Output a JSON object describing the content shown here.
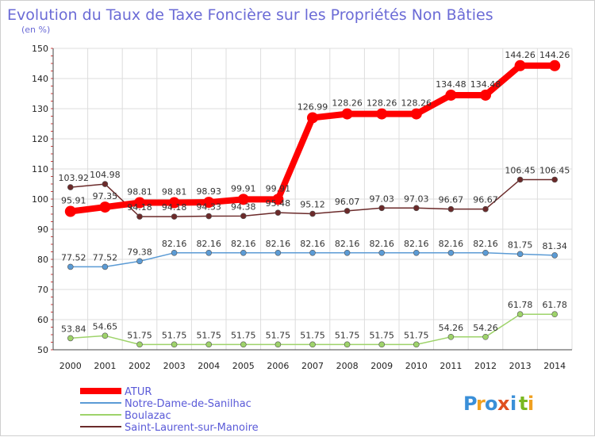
{
  "chart_data": {
    "type": "line",
    "title": "Evolution du Taux de Taxe Foncière sur les Propriétés Non Bâties",
    "ylabel": "(en %)",
    "xlabel": "",
    "ylim": [
      50,
      150
    ],
    "yticks": [
      50,
      60,
      70,
      80,
      90,
      100,
      110,
      120,
      130,
      140,
      150
    ],
    "grid": true,
    "legend_position": "bottom-left",
    "categories": [
      "2000",
      "2001",
      "2002",
      "2003",
      "2004",
      "2005",
      "2006",
      "2007",
      "2008",
      "2009",
      "2010",
      "2011",
      "2012",
      "2013",
      "2014"
    ],
    "series": [
      {
        "name": "Saint-Laurent-sur-Manoire",
        "color": "#6b2a2a",
        "values": [
          103.92,
          104.98,
          94.18,
          94.18,
          94.33,
          94.38,
          95.48,
          95.12,
          96.07,
          97.03,
          97.03,
          96.67,
          96.67,
          106.45,
          106.45
        ],
        "labels": [
          "103.92",
          "104.98",
          "94.18",
          "94.18",
          "94.33",
          "94.38",
          "95.48",
          "95.12",
          "96.07",
          "97.03",
          "97.03",
          "96.67",
          "96.67",
          "106.45",
          "106.45"
        ]
      },
      {
        "name": "Notre-Dame-de-Sanilhac",
        "color": "#5b9bd5",
        "values": [
          77.52,
          77.52,
          79.38,
          82.16,
          82.16,
          82.16,
          82.16,
          82.16,
          82.16,
          82.16,
          82.16,
          82.16,
          82.16,
          81.75,
          81.34
        ],
        "labels": [
          "77.52",
          "77.52",
          "79.38",
          "82.16",
          "82.16",
          "82.16",
          "82.16",
          "82.16",
          "82.16",
          "82.16",
          "82.16",
          "82.16",
          "82.16",
          "81.75",
          "81.34"
        ]
      },
      {
        "name": "Boulazac",
        "color": "#9ed36a",
        "values": [
          53.84,
          54.65,
          51.75,
          51.75,
          51.75,
          51.75,
          51.75,
          51.75,
          51.75,
          51.75,
          51.75,
          54.26,
          54.26,
          61.78,
          61.78
        ],
        "labels": [
          "53.84",
          "54.65",
          "51.75",
          "51.75",
          "51.75",
          "51.75",
          "51.75",
          "51.75",
          "51.75",
          "51.75",
          "51.75",
          "54.26",
          "54.26",
          "61.78",
          "61.78"
        ]
      },
      {
        "name": "ATUR",
        "color": "#ff0000",
        "values": [
          95.91,
          97.35,
          98.81,
          98.81,
          98.93,
          99.91,
          99.91,
          126.99,
          128.26,
          128.26,
          128.26,
          134.48,
          134.48,
          144.26,
          144.26
        ],
        "labels": [
          "95.91",
          "97.35",
          "98.81",
          "98.81",
          "98.93",
          "99.91",
          "99.91",
          "126.99",
          "128.26",
          "128.26",
          "128.26",
          "134.48",
          "134.48",
          "144.26",
          "144.26"
        ]
      }
    ],
    "legend": [
      "ATUR",
      "Notre-Dame-de-Sanilhac",
      "Boulazac",
      "Saint-Laurent-sur-Manoire"
    ]
  },
  "logo": {
    "chars": [
      "P",
      "r",
      "o",
      "x",
      "i",
      "t",
      "i"
    ],
    "colors": [
      "#3a8fd8",
      "#f0a020",
      "#3a8fd8",
      "#e05020",
      "#3a8fd8",
      "#7ab820",
      "#f0a020"
    ]
  }
}
